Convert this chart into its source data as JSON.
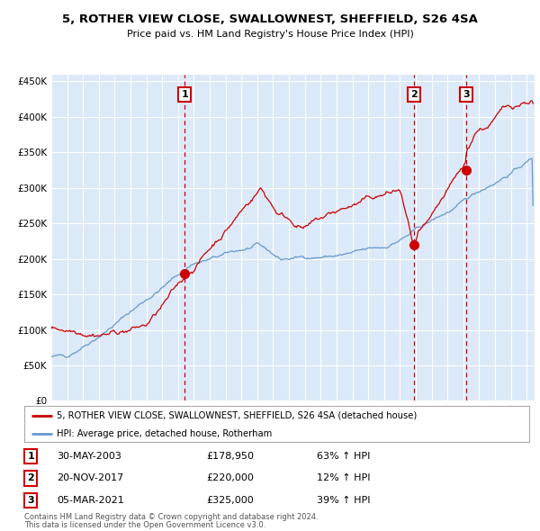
{
  "title1": "5, ROTHER VIEW CLOSE, SWALLOWNEST, SHEFFIELD, S26 4SA",
  "title2": "Price paid vs. HM Land Registry's House Price Index (HPI)",
  "legend_label_red": "5, ROTHER VIEW CLOSE, SWALLOWNEST, SHEFFIELD, S26 4SA (detached house)",
  "legend_label_blue": "HPI: Average price, detached house, Rotherham",
  "footer1": "Contains HM Land Registry data © Crown copyright and database right 2024.",
  "footer2": "This data is licensed under the Open Government Licence v3.0.",
  "sales": [
    {
      "num": 1,
      "date": "30-MAY-2003",
      "price": 178950,
      "pct": "63%",
      "dir": "↑",
      "x": 2003.42
    },
    {
      "num": 2,
      "date": "20-NOV-2017",
      "price": 220000,
      "pct": "12%",
      "dir": "↑",
      "x": 2017.89
    },
    {
      "num": 3,
      "date": "05-MAR-2021",
      "price": 325000,
      "pct": "39%",
      "dir": "↑",
      "x": 2021.18
    }
  ],
  "ylim": [
    0,
    460000
  ],
  "xlim_left": 1995.0,
  "xlim_right": 2025.5,
  "bg_color": "#dce9f8",
  "red_color": "#cc0000",
  "blue_color": "#6699cc",
  "grid_color": "#ffffff",
  "sale_marker_color": "#cc0000",
  "dashed_line_color": "#cc0000"
}
